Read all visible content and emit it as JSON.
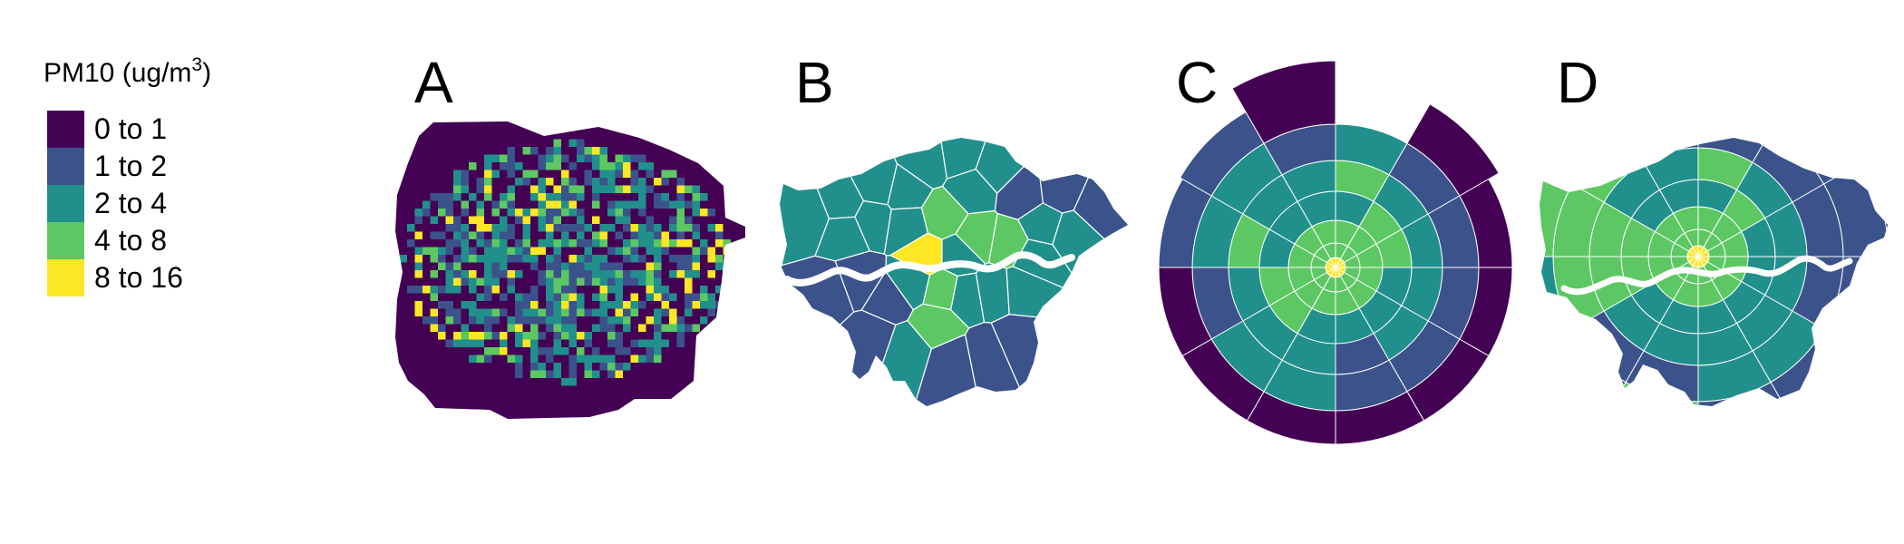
{
  "legend": {
    "title": "PM10 (ug/m",
    "title_superscript": "3",
    "title_close": ")",
    "items": [
      {
        "label": "0 to 1",
        "color": "#440154"
      },
      {
        "label": "1 to 2",
        "color": "#3b528b"
      },
      {
        "label": "2 to 4",
        "color": "#21908c"
      },
      {
        "label": "4 to 8",
        "color": "#5dc863"
      },
      {
        "label": "8 to 16",
        "color": "#fde725"
      }
    ]
  },
  "panels": [
    {
      "id": "A",
      "label": "A",
      "kind": "grid"
    },
    {
      "id": "B",
      "label": "B",
      "kind": "boroughs"
    },
    {
      "id": "C",
      "label": "C",
      "kind": "polar-grid"
    },
    {
      "id": "D",
      "label": "D",
      "kind": "polar-clipped"
    }
  ],
  "colors": {
    "river": "#ffffff",
    "boundary": "#ffffff"
  },
  "chart_data": {
    "type": "heatmap",
    "legend_placement": "left",
    "classes": [
      "0 to 1",
      "1 to 2",
      "2 to 4",
      "4 to 8",
      "8 to 16"
    ]
  }
}
